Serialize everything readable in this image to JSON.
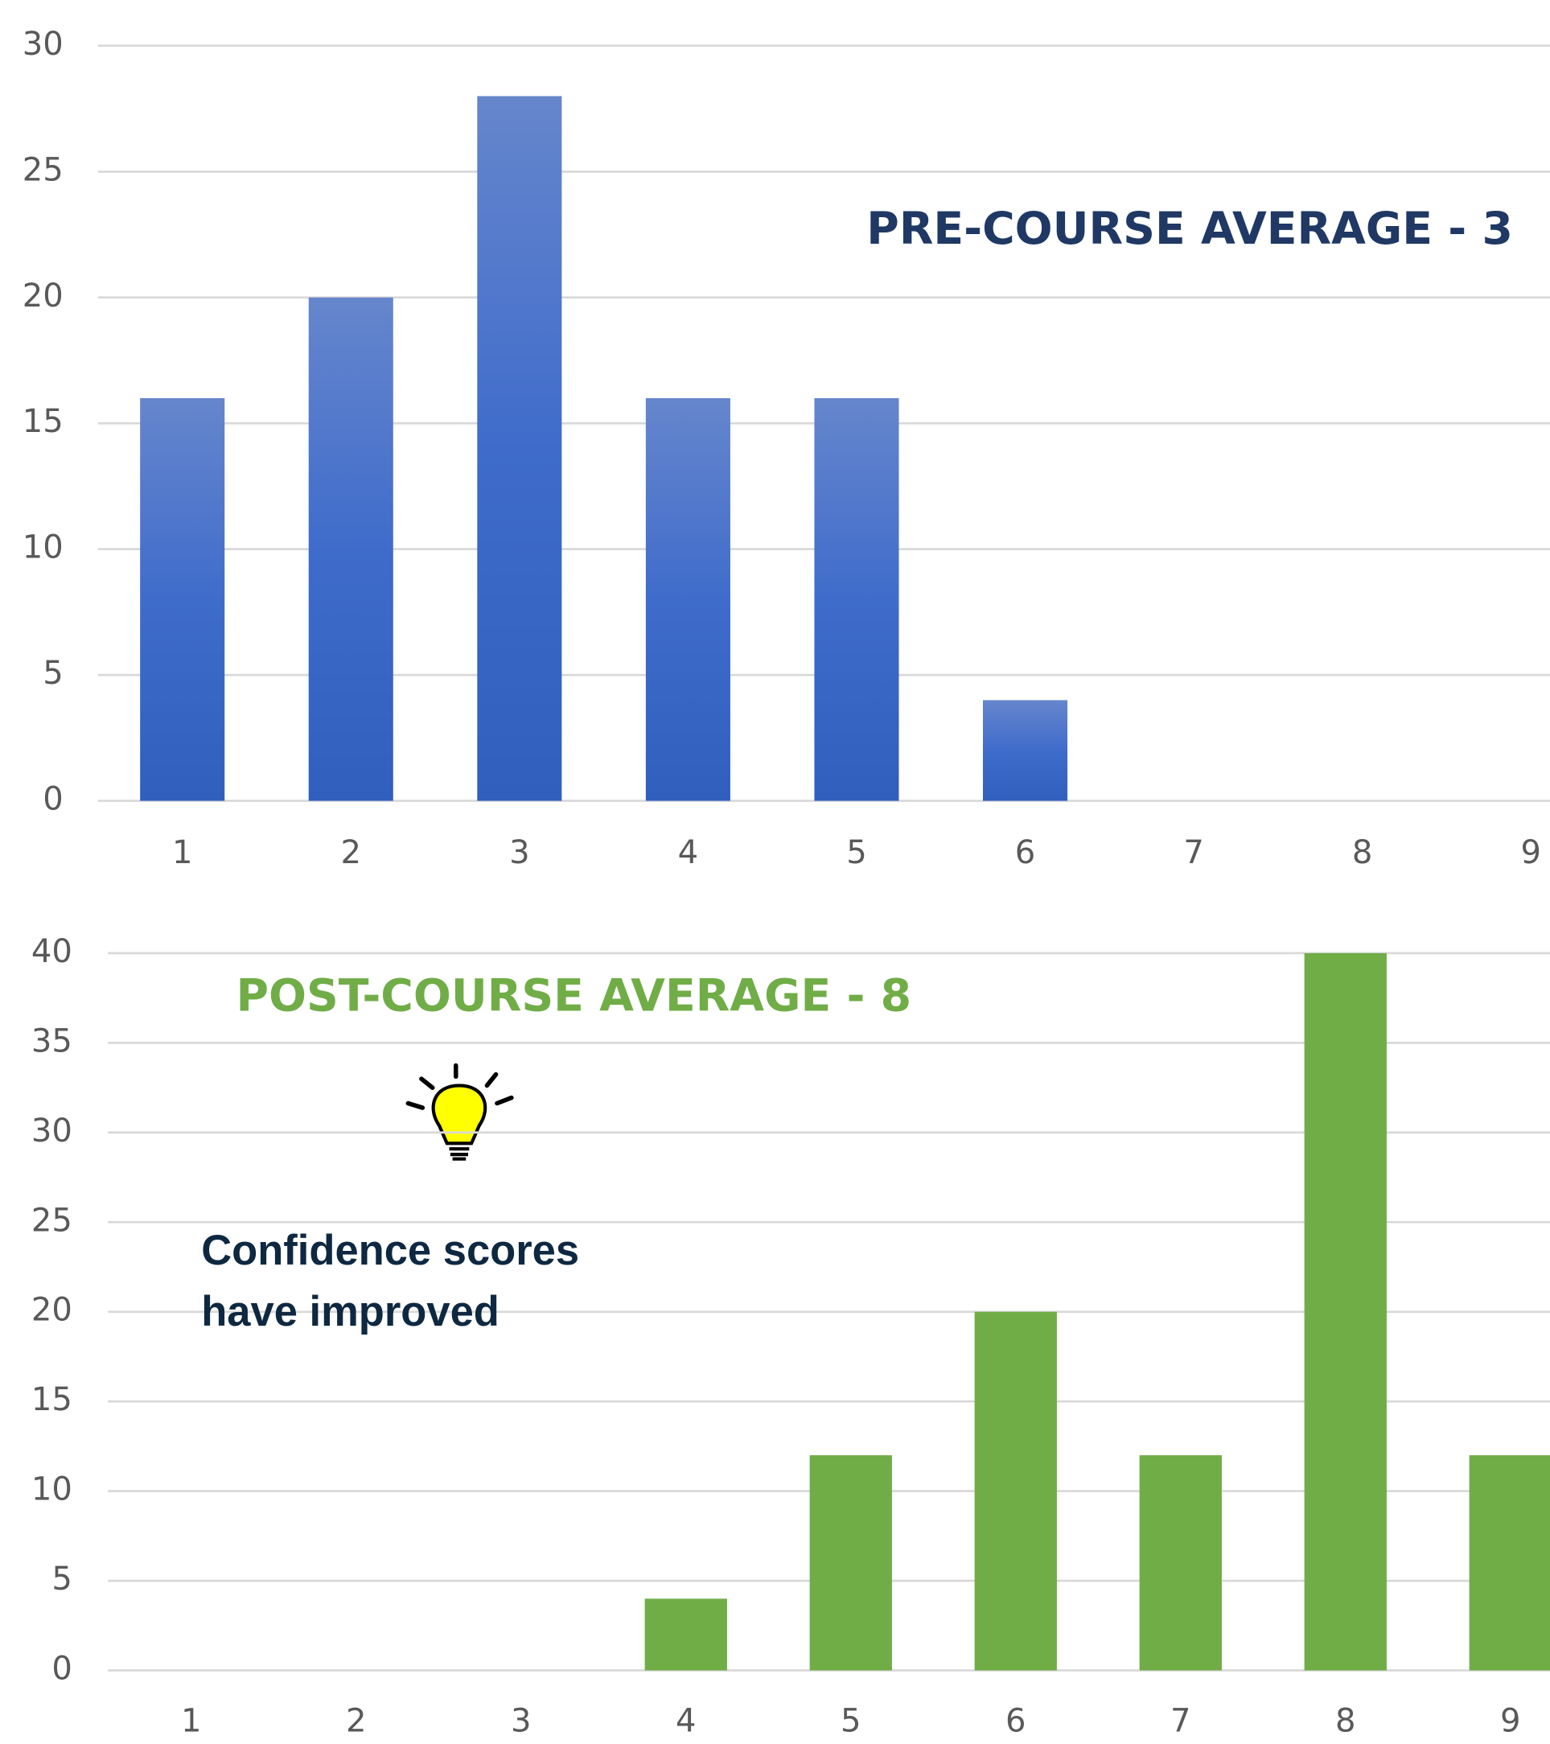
{
  "chart_data": [
    {
      "type": "bar",
      "annotation": "PRE-COURSE AVERAGE - 3",
      "categories": [
        "1",
        "2",
        "3",
        "4",
        "5",
        "6",
        "7",
        "8",
        "9"
      ],
      "values": [
        16,
        20,
        28,
        16,
        16,
        4,
        0,
        0,
        0
      ],
      "color": "#4472c4",
      "annotation_color": "#1f3864",
      "ylim": [
        0,
        30
      ],
      "yticks": [
        0,
        5,
        10,
        15,
        20,
        25,
        30
      ],
      "grid": true
    },
    {
      "type": "bar",
      "annotation": "POST-COURSE AVERAGE - 8",
      "callout": [
        "Confidence scores",
        "have improved"
      ],
      "categories": [
        "1",
        "2",
        "3",
        "4",
        "5",
        "6",
        "7",
        "8",
        "9"
      ],
      "values": [
        0,
        0,
        0,
        4,
        12,
        20,
        12,
        40,
        12
      ],
      "color": "#70ad47",
      "annotation_color": "#70ad47",
      "ylim": [
        0,
        40
      ],
      "yticks": [
        0,
        5,
        10,
        15,
        20,
        25,
        30,
        35,
        40
      ],
      "grid": true
    }
  ]
}
